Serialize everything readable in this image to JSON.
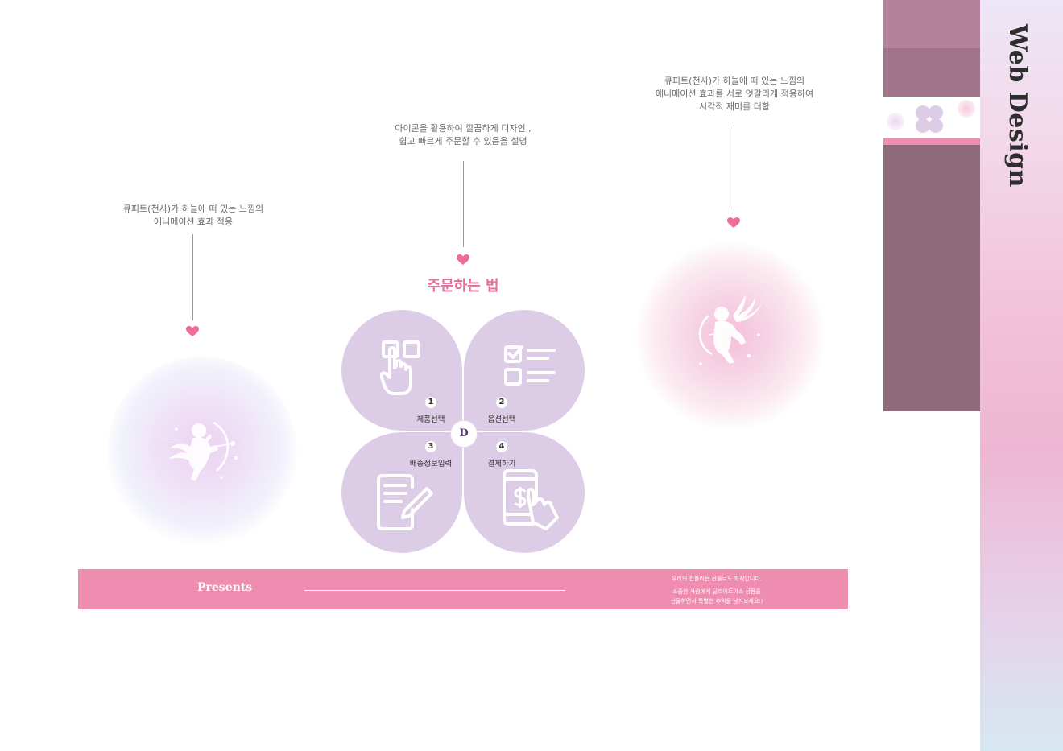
{
  "annotations": {
    "left": [
      "큐피트(천사)가  하늘에 떠 있는 느낌의",
      "애니메이션 효과 적용"
    ],
    "center": [
      "아이콘을 활용하여 깔끔하게 디자인 ,",
      "쉽고 빠르게 주문할 수 있음을 설명"
    ],
    "right": [
      "큐피트(천사)가  하늘에 떠 있는 느낌의",
      "애니메이션 효과를 서로 엇갈리게 적용하여",
      "시각적 재미를 더함"
    ]
  },
  "order_section": {
    "title": "주문하는 법",
    "center_logo": "D",
    "steps": [
      {
        "number": "1",
        "label": "제품선택",
        "icon": "tap-select-icon"
      },
      {
        "number": "2",
        "label": "옵션선택",
        "icon": "checklist-icon"
      },
      {
        "number": "3",
        "label": "배송정보입력",
        "icon": "form-pen-icon"
      },
      {
        "number": "4",
        "label": "결제하기",
        "icon": "mobile-payment-icon"
      }
    ]
  },
  "banner": {
    "title": "Presents",
    "lines": [
      "우리의 컵볼러는 선물로도 최적입니다.",
      "소중한 사람에게 딜라이트어스 상품을",
      "선물하면서 특별한 추억을 남겨보세요:)"
    ]
  },
  "sidebar": {
    "title": "Web Design"
  },
  "colors": {
    "accent": "#ee6c9c",
    "petal": "#ddcce6",
    "banner": "#ee8db0"
  }
}
